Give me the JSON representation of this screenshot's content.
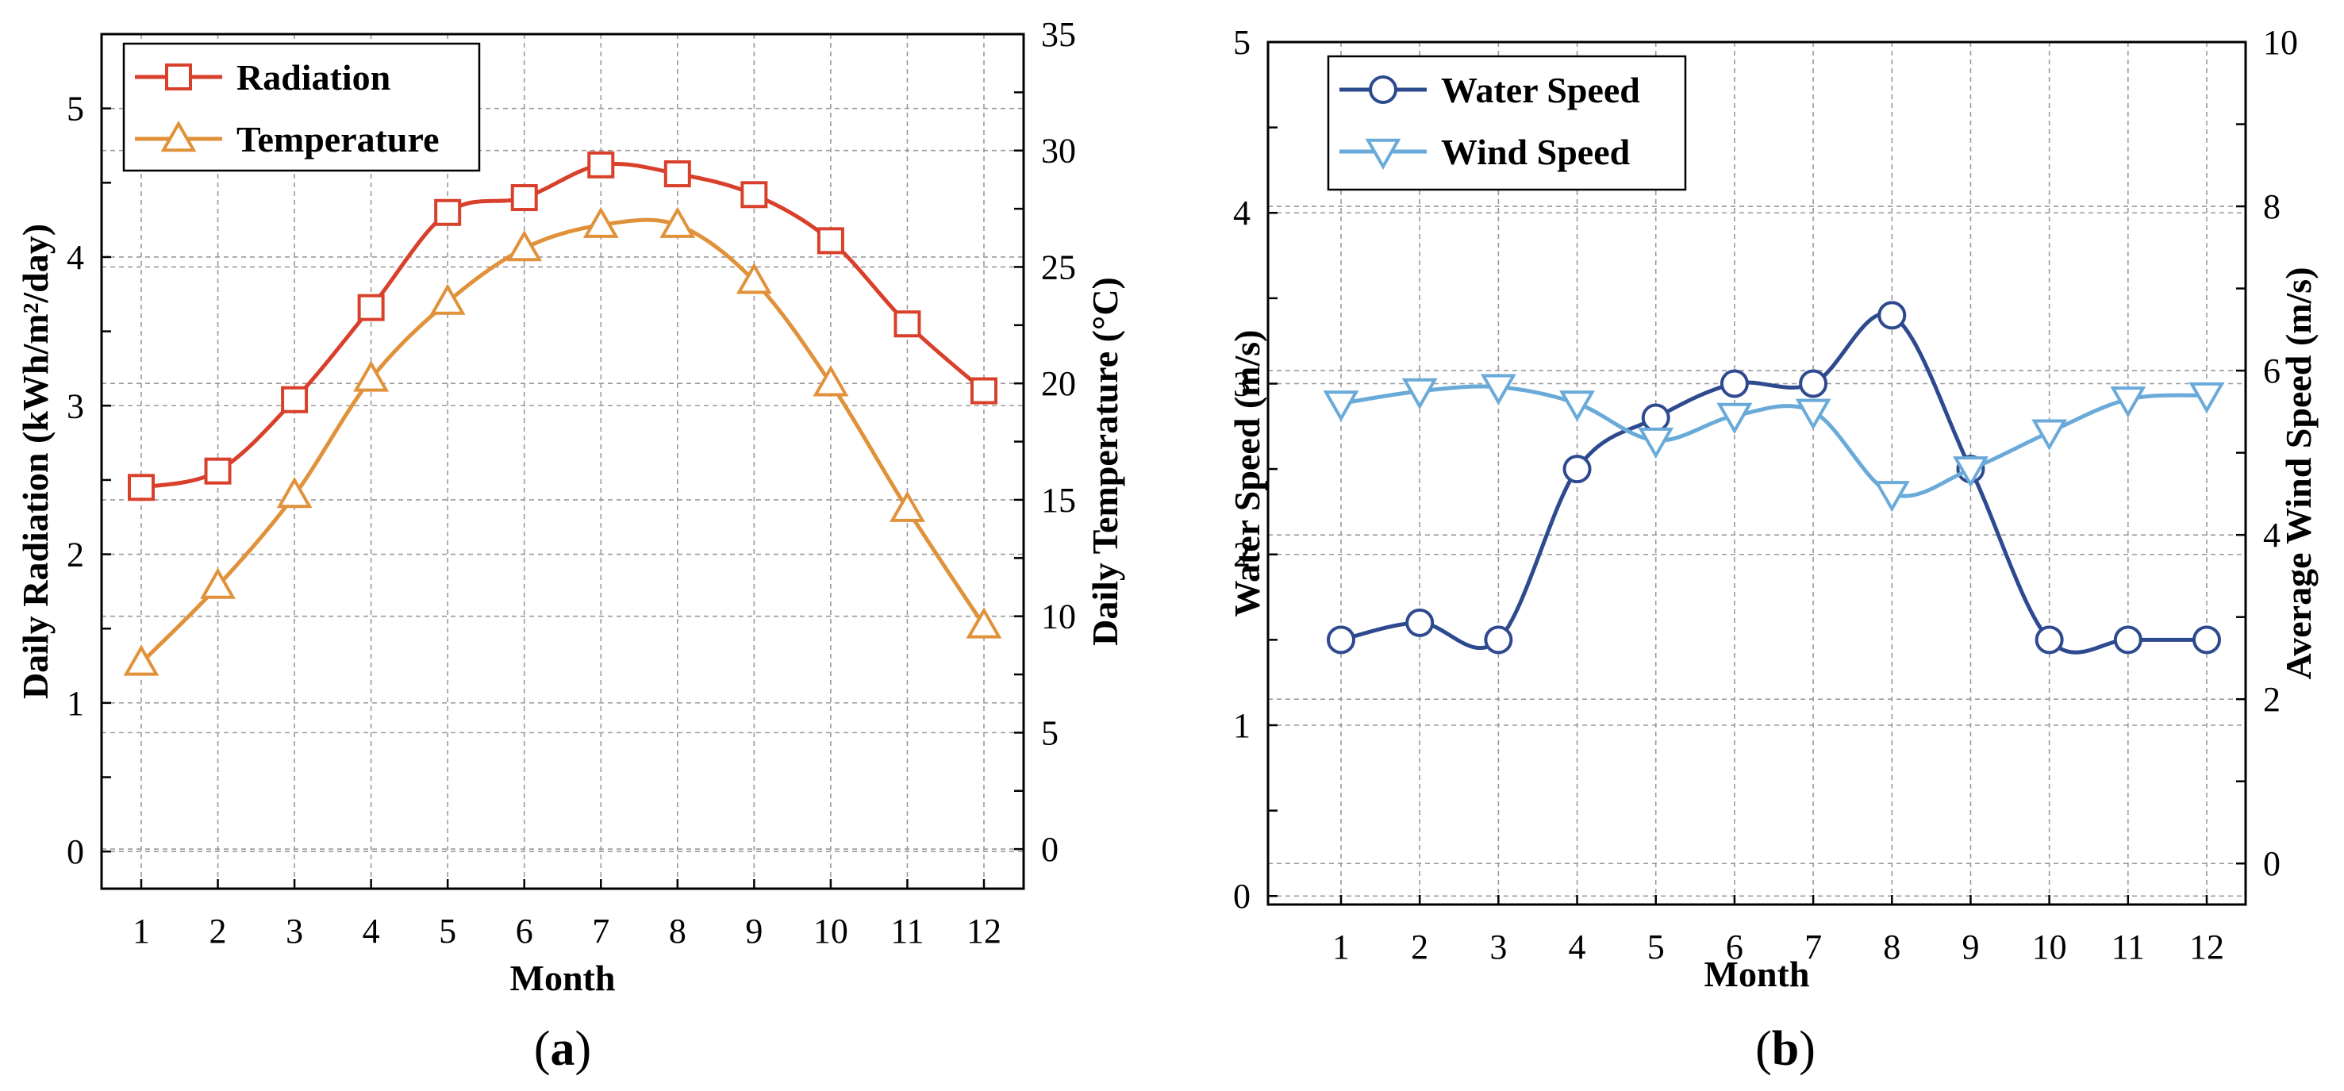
{
  "chart_data": [
    {
      "type": "line",
      "panel_label": "a",
      "xlabel": "Month",
      "ylabel_left": "Daily Radiation (kWh/m²/day)",
      "ylabel_right": "Daily Temperature (°C)",
      "ylim_left": [
        -0.25,
        5.5
      ],
      "ylim_right": [
        -1.7,
        35
      ],
      "yticks_left": [
        "0",
        "1",
        "2",
        "3",
        "4",
        "5"
      ],
      "yticks_right": [
        "0",
        "5",
        "10",
        "15",
        "20",
        "25",
        "30",
        "35"
      ],
      "categories": [
        "1",
        "2",
        "3",
        "4",
        "5",
        "6",
        "7",
        "8",
        "9",
        "10",
        "11",
        "12"
      ],
      "series": [
        {
          "name": "Radiation",
          "axis": "left",
          "marker": "square",
          "color": "#d9402b",
          "values": [
            2.45,
            2.56,
            3.04,
            3.66,
            4.3,
            4.4,
            4.62,
            4.56,
            4.42,
            4.11,
            3.55,
            3.1
          ]
        },
        {
          "name": "Temperature",
          "axis": "right",
          "marker": "triangle-up",
          "color": "#e0913a",
          "values": [
            8.0,
            11.3,
            15.2,
            20.2,
            23.5,
            25.8,
            26.8,
            26.8,
            24.4,
            20.0,
            14.6,
            9.6
          ]
        }
      ],
      "legend": "top-left",
      "grid": true
    },
    {
      "type": "line",
      "panel_label": "b",
      "xlabel": "Month",
      "ylabel_left": "Water Speed (m/s)",
      "ylabel_right": "Average Wind Speed (m/s)",
      "ylim_left": [
        -0.05,
        5
      ],
      "ylim_right": [
        -0.5,
        10
      ],
      "yticks_left": [
        "0",
        "1",
        "2",
        "3",
        "4",
        "5"
      ],
      "yticks_right": [
        "0",
        "2",
        "4",
        "6",
        "8",
        "10"
      ],
      "categories": [
        "1",
        "2",
        "3",
        "4",
        "5",
        "6",
        "7",
        "8",
        "9",
        "10",
        "11",
        "12"
      ],
      "series": [
        {
          "name": "Water Speed",
          "axis": "left",
          "marker": "circle",
          "color": "#2e4a8f",
          "values": [
            1.5,
            1.6,
            1.5,
            2.5,
            2.8,
            3.0,
            3.0,
            3.4,
            2.5,
            1.5,
            1.5,
            1.5
          ]
        },
        {
          "name": "Wind  Speed",
          "axis": "right",
          "marker": "triangle-down",
          "color": "#6aaad8",
          "values": [
            5.6,
            5.75,
            5.8,
            5.6,
            5.15,
            5.45,
            5.5,
            4.5,
            4.8,
            5.25,
            5.65,
            5.7
          ]
        }
      ],
      "legend": "top-left",
      "grid": true
    }
  ]
}
